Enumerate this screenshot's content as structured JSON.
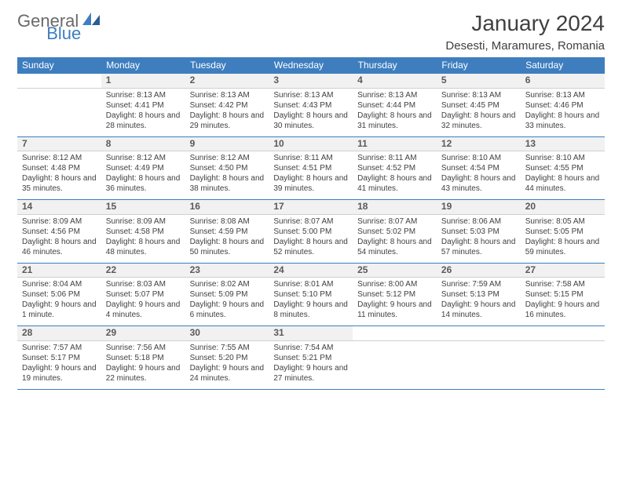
{
  "logo": {
    "text1": "General",
    "text2": "Blue",
    "shape_color": "#3e7ebf"
  },
  "title": "January 2024",
  "location": "Desesti, Maramures, Romania",
  "colors": {
    "header_bg": "#3e7ebf",
    "header_text": "#ffffff",
    "border": "#3e7ebf",
    "daynum_bg": "#f1f1f1",
    "daynum_border": "#cfcfcf",
    "text": "#404040"
  },
  "typography": {
    "title_fontsize": 28,
    "location_fontsize": 15,
    "dayname_fontsize": 12,
    "daynum_fontsize": 12,
    "cell_fontsize": 10
  },
  "day_names": [
    "Sunday",
    "Monday",
    "Tuesday",
    "Wednesday",
    "Thursday",
    "Friday",
    "Saturday"
  ],
  "weeks": [
    [
      null,
      {
        "n": "1",
        "sr": "Sunrise: 8:13 AM",
        "ss": "Sunset: 4:41 PM",
        "dl": "Daylight: 8 hours and 28 minutes."
      },
      {
        "n": "2",
        "sr": "Sunrise: 8:13 AM",
        "ss": "Sunset: 4:42 PM",
        "dl": "Daylight: 8 hours and 29 minutes."
      },
      {
        "n": "3",
        "sr": "Sunrise: 8:13 AM",
        "ss": "Sunset: 4:43 PM",
        "dl": "Daylight: 8 hours and 30 minutes."
      },
      {
        "n": "4",
        "sr": "Sunrise: 8:13 AM",
        "ss": "Sunset: 4:44 PM",
        "dl": "Daylight: 8 hours and 31 minutes."
      },
      {
        "n": "5",
        "sr": "Sunrise: 8:13 AM",
        "ss": "Sunset: 4:45 PM",
        "dl": "Daylight: 8 hours and 32 minutes."
      },
      {
        "n": "6",
        "sr": "Sunrise: 8:13 AM",
        "ss": "Sunset: 4:46 PM",
        "dl": "Daylight: 8 hours and 33 minutes."
      }
    ],
    [
      {
        "n": "7",
        "sr": "Sunrise: 8:12 AM",
        "ss": "Sunset: 4:48 PM",
        "dl": "Daylight: 8 hours and 35 minutes."
      },
      {
        "n": "8",
        "sr": "Sunrise: 8:12 AM",
        "ss": "Sunset: 4:49 PM",
        "dl": "Daylight: 8 hours and 36 minutes."
      },
      {
        "n": "9",
        "sr": "Sunrise: 8:12 AM",
        "ss": "Sunset: 4:50 PM",
        "dl": "Daylight: 8 hours and 38 minutes."
      },
      {
        "n": "10",
        "sr": "Sunrise: 8:11 AM",
        "ss": "Sunset: 4:51 PM",
        "dl": "Daylight: 8 hours and 39 minutes."
      },
      {
        "n": "11",
        "sr": "Sunrise: 8:11 AM",
        "ss": "Sunset: 4:52 PM",
        "dl": "Daylight: 8 hours and 41 minutes."
      },
      {
        "n": "12",
        "sr": "Sunrise: 8:10 AM",
        "ss": "Sunset: 4:54 PM",
        "dl": "Daylight: 8 hours and 43 minutes."
      },
      {
        "n": "13",
        "sr": "Sunrise: 8:10 AM",
        "ss": "Sunset: 4:55 PM",
        "dl": "Daylight: 8 hours and 44 minutes."
      }
    ],
    [
      {
        "n": "14",
        "sr": "Sunrise: 8:09 AM",
        "ss": "Sunset: 4:56 PM",
        "dl": "Daylight: 8 hours and 46 minutes."
      },
      {
        "n": "15",
        "sr": "Sunrise: 8:09 AM",
        "ss": "Sunset: 4:58 PM",
        "dl": "Daylight: 8 hours and 48 minutes."
      },
      {
        "n": "16",
        "sr": "Sunrise: 8:08 AM",
        "ss": "Sunset: 4:59 PM",
        "dl": "Daylight: 8 hours and 50 minutes."
      },
      {
        "n": "17",
        "sr": "Sunrise: 8:07 AM",
        "ss": "Sunset: 5:00 PM",
        "dl": "Daylight: 8 hours and 52 minutes."
      },
      {
        "n": "18",
        "sr": "Sunrise: 8:07 AM",
        "ss": "Sunset: 5:02 PM",
        "dl": "Daylight: 8 hours and 54 minutes."
      },
      {
        "n": "19",
        "sr": "Sunrise: 8:06 AM",
        "ss": "Sunset: 5:03 PM",
        "dl": "Daylight: 8 hours and 57 minutes."
      },
      {
        "n": "20",
        "sr": "Sunrise: 8:05 AM",
        "ss": "Sunset: 5:05 PM",
        "dl": "Daylight: 8 hours and 59 minutes."
      }
    ],
    [
      {
        "n": "21",
        "sr": "Sunrise: 8:04 AM",
        "ss": "Sunset: 5:06 PM",
        "dl": "Daylight: 9 hours and 1 minute."
      },
      {
        "n": "22",
        "sr": "Sunrise: 8:03 AM",
        "ss": "Sunset: 5:07 PM",
        "dl": "Daylight: 9 hours and 4 minutes."
      },
      {
        "n": "23",
        "sr": "Sunrise: 8:02 AM",
        "ss": "Sunset: 5:09 PM",
        "dl": "Daylight: 9 hours and 6 minutes."
      },
      {
        "n": "24",
        "sr": "Sunrise: 8:01 AM",
        "ss": "Sunset: 5:10 PM",
        "dl": "Daylight: 9 hours and 8 minutes."
      },
      {
        "n": "25",
        "sr": "Sunrise: 8:00 AM",
        "ss": "Sunset: 5:12 PM",
        "dl": "Daylight: 9 hours and 11 minutes."
      },
      {
        "n": "26",
        "sr": "Sunrise: 7:59 AM",
        "ss": "Sunset: 5:13 PM",
        "dl": "Daylight: 9 hours and 14 minutes."
      },
      {
        "n": "27",
        "sr": "Sunrise: 7:58 AM",
        "ss": "Sunset: 5:15 PM",
        "dl": "Daylight: 9 hours and 16 minutes."
      }
    ],
    [
      {
        "n": "28",
        "sr": "Sunrise: 7:57 AM",
        "ss": "Sunset: 5:17 PM",
        "dl": "Daylight: 9 hours and 19 minutes."
      },
      {
        "n": "29",
        "sr": "Sunrise: 7:56 AM",
        "ss": "Sunset: 5:18 PM",
        "dl": "Daylight: 9 hours and 22 minutes."
      },
      {
        "n": "30",
        "sr": "Sunrise: 7:55 AM",
        "ss": "Sunset: 5:20 PM",
        "dl": "Daylight: 9 hours and 24 minutes."
      },
      {
        "n": "31",
        "sr": "Sunrise: 7:54 AM",
        "ss": "Sunset: 5:21 PM",
        "dl": "Daylight: 9 hours and 27 minutes."
      },
      null,
      null,
      null
    ]
  ]
}
